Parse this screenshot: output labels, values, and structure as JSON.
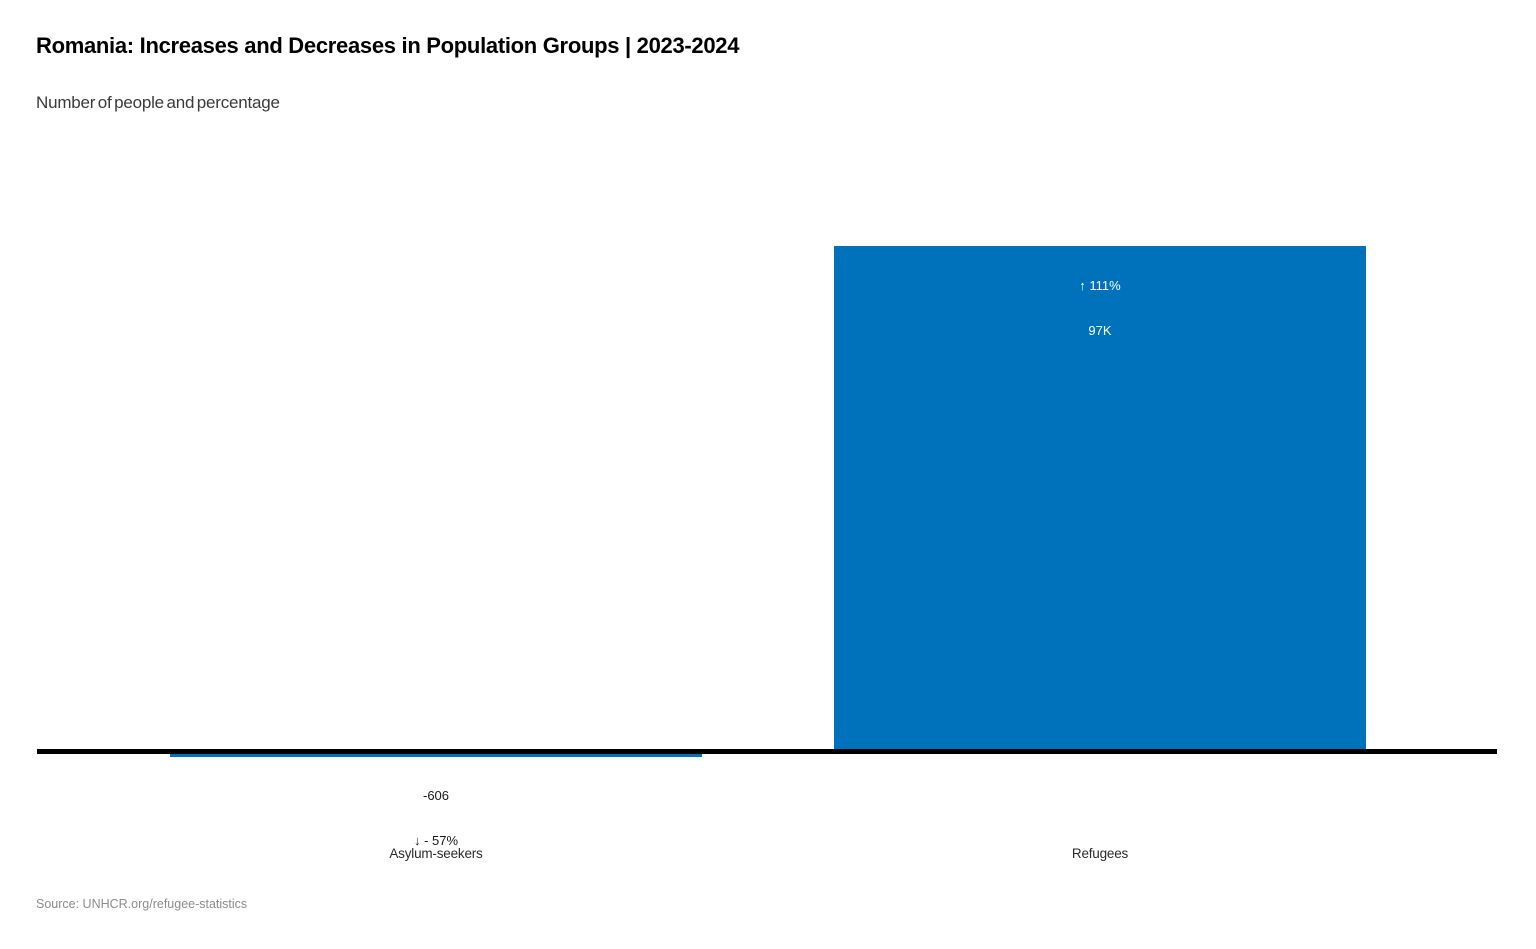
{
  "header": {
    "title": "Romania: Increases and Decreases in Population Groups | 2023-2024",
    "subtitle": "Number of people and percentage"
  },
  "chart_data": {
    "type": "bar",
    "title": "Romania: Increases and Decreases in Population Groups | 2023-2024",
    "subtitle": "Number of people and percentage",
    "categories": [
      "Asylum-seekers",
      "Refugees"
    ],
    "values": [
      -606,
      97000
    ],
    "percent_changes": [
      -57,
      111
    ],
    "bars": [
      {
        "category": "Asylum-seekers",
        "value": -606,
        "percent_change": -57,
        "label_line1": "-606",
        "label_line2": "↓ - 57%",
        "label_position": "below-bar",
        "label_color": "#1a1a1a"
      },
      {
        "category": "Refugees",
        "value": 97000,
        "percent_change": 111,
        "label_line1": "↑ 111%",
        "label_line2": "97K",
        "label_position": "inside-top",
        "label_color": "#ffffff"
      }
    ],
    "xlabel": "",
    "ylabel": "",
    "baseline": 0,
    "ylim": [
      -606,
      97000
    ],
    "grid": false,
    "legend_position": "none",
    "axis_line_color": "#000000",
    "bar_color": "#0072BC"
  },
  "footer": {
    "source": "Source: UNHCR.org/refugee-statistics"
  },
  "colors": {
    "bar_blue": "#0072BC",
    "axis_black": "#000000",
    "title_text": "#000000",
    "subtitle_text": "#3a3a3a",
    "source_text": "#8c8c8c",
    "background": "#ffffff"
  },
  "icons": {
    "up_arrow": "↑",
    "down_arrow": "↓"
  }
}
